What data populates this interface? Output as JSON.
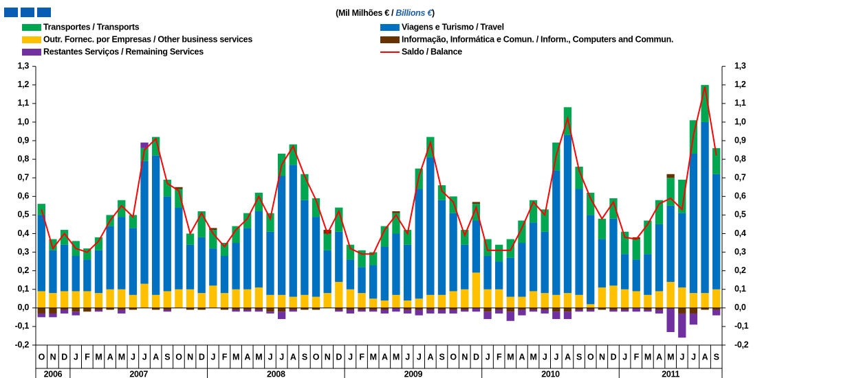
{
  "chart_data": {
    "type": "bar",
    "title": [
      "(Mil Milhões € / ",
      "Billions €",
      ")"
    ],
    "categories": [
      "O",
      "N",
      "D",
      "J",
      "F",
      "M",
      "A",
      "M",
      "J",
      "J",
      "A",
      "S",
      "O",
      "N",
      "D",
      "J",
      "F",
      "M",
      "A",
      "M",
      "J",
      "J",
      "A",
      "S",
      "O",
      "N",
      "D",
      "J",
      "F",
      "M",
      "A",
      "M",
      "J",
      "J",
      "A",
      "S",
      "O",
      "N",
      "D",
      "J",
      "F",
      "M",
      "A",
      "M",
      "J",
      "J",
      "A",
      "S",
      "O",
      "N",
      "D",
      "J",
      "F",
      "M",
      "A",
      "M",
      "J",
      "J",
      "A",
      "S"
    ],
    "years": [
      "2006",
      "2007",
      "2008",
      "2009",
      "2010",
      "2011"
    ],
    "ylim": [
      -0.2,
      1.3
    ],
    "yticks": [
      {
        "value": -0.2,
        "label": "-0,2"
      },
      {
        "value": -0.1,
        "label": "-0,1"
      },
      {
        "value": 0,
        "label": "0,0"
      },
      {
        "value": 0.1,
        "label": "0,1"
      },
      {
        "value": 0.2,
        "label": "0,2"
      },
      {
        "value": 0.3,
        "label": "0,3"
      },
      {
        "value": 0.4,
        "label": "0,4"
      },
      {
        "value": 0.5,
        "label": "0,5"
      },
      {
        "value": 0.6,
        "label": "0,6"
      },
      {
        "value": 0.7,
        "label": "0,7"
      },
      {
        "value": 0.8,
        "label": "0,8"
      },
      {
        "value": 0.9,
        "label": "0,9"
      },
      {
        "value": 1,
        "label": "1,0"
      },
      {
        "value": 1.1,
        "label": "1,1"
      },
      {
        "value": 1.2,
        "label": "1,2"
      },
      {
        "value": 1.3,
        "label": "1,3"
      }
    ],
    "y2lim": [
      -0.2,
      1.3
    ],
    "y2ticks": [
      {
        "value": -0.2,
        "label": "-0,2"
      },
      {
        "value": -0.1,
        "label": "-0,1"
      },
      {
        "value": 0,
        "label": "0,0"
      },
      {
        "value": 0.1,
        "label": "0,1"
      },
      {
        "value": 0.2,
        "label": "0,2"
      },
      {
        "value": 0.3,
        "label": "0,3"
      },
      {
        "value": 0.4,
        "label": "0,4"
      },
      {
        "value": 0.5,
        "label": "0,5"
      },
      {
        "value": 0.6,
        "label": "0,6"
      },
      {
        "value": 0.7,
        "label": "0,7"
      },
      {
        "value": 0.8,
        "label": "0,8"
      },
      {
        "value": 0.9,
        "label": "0,9"
      },
      {
        "value": 1,
        "label": "1,0"
      },
      {
        "value": 1.1,
        "label": "1,1"
      },
      {
        "value": 1.2,
        "label": "1,2"
      },
      {
        "value": 1.3,
        "label": "1,3"
      }
    ],
    "grid": false,
    "series": [
      {
        "name": "Transportes / Transports",
        "color": "#00a650",
        "values": [
          0.06,
          0.06,
          0.08,
          0.08,
          0.06,
          0.07,
          0.06,
          0.09,
          0.07,
          0.07,
          0.1,
          0.09,
          0.1,
          0.06,
          0.14,
          0.1,
          0.07,
          0.09,
          0.08,
          0.1,
          0.1,
          0.12,
          0.11,
          0.14,
          0.1,
          0.09,
          0.13,
          0.08,
          0.09,
          0.07,
          0.11,
          0.11,
          0.08,
          0.11,
          0.11,
          0.08,
          0.09,
          0.08,
          0.09,
          0.09,
          0.09,
          0.1,
          0.12,
          0.12,
          0.12,
          0.15,
          0.15,
          0.12,
          0.12,
          0.11,
          0.11,
          0.12,
          0.11,
          0.18,
          0.13,
          0.15,
          0.18,
          0.18,
          0.2,
          0.14
        ]
      },
      {
        "name": "Viagens e Turismo / Travel",
        "color": "#0070c0",
        "values": [
          0.41,
          0.23,
          0.25,
          0.19,
          0.17,
          0.23,
          0.34,
          0.39,
          0.36,
          0.66,
          0.75,
          0.51,
          0.44,
          0.24,
          0.3,
          0.2,
          0.2,
          0.25,
          0.33,
          0.41,
          0.34,
          0.64,
          0.71,
          0.51,
          0.43,
          0.23,
          0.27,
          0.16,
          0.14,
          0.18,
          0.29,
          0.33,
          0.3,
          0.59,
          0.74,
          0.51,
          0.42,
          0.24,
          0.28,
          0.18,
          0.15,
          0.21,
          0.29,
          0.37,
          0.33,
          0.67,
          0.85,
          0.57,
          0.48,
          0.26,
          0.36,
          0.19,
          0.17,
          0.22,
          0.36,
          0.41,
          0.4,
          0.75,
          0.92,
          0.62
        ]
      },
      {
        "name": "Outr. Fornec. por Empresas  / Other business services",
        "color": "#ffc000",
        "values": [
          0.09,
          0.08,
          0.09,
          0.09,
          0.09,
          0.08,
          0.1,
          0.1,
          0.07,
          0.13,
          0.07,
          0.09,
          0.1,
          0.1,
          0.08,
          0.12,
          0.08,
          0.1,
          0.1,
          0.11,
          0.07,
          0.07,
          0.06,
          0.07,
          0.06,
          0.08,
          0.14,
          0.1,
          0.08,
          0.05,
          0.04,
          0.07,
          0.04,
          0.05,
          0.07,
          0.07,
          0.09,
          0.1,
          0.19,
          0.1,
          0.1,
          0.06,
          0.06,
          0.09,
          0.08,
          0.07,
          0.08,
          0.07,
          0.02,
          0.11,
          0.12,
          0.1,
          0.09,
          0.07,
          0.09,
          0.14,
          0.11,
          0.08,
          0.08,
          0.1
        ]
      },
      {
        "name": "Informação, Informática e Comun. / Inform., Computers and Commun.",
        "color": "#663300",
        "values": [
          -0.03,
          -0.03,
          -0.01,
          -0.02,
          -0.02,
          -0.01,
          -0.01,
          -0.01,
          -0.01,
          0,
          -0.01,
          -0.01,
          0.01,
          -0.01,
          -0.01,
          0.01,
          -0.01,
          -0.01,
          -0.01,
          -0.01,
          -0.02,
          -0.02,
          -0.01,
          -0.01,
          -0.01,
          0.02,
          -0.01,
          -0.01,
          -0.01,
          -0.01,
          -0.01,
          0.01,
          -0.01,
          -0.01,
          -0.01,
          -0.01,
          -0.01,
          -0.01,
          0.01,
          -0.02,
          -0.01,
          -0.02,
          -0.01,
          -0.01,
          -0.01,
          -0.02,
          -0.02,
          -0.01,
          -0.01,
          -0.01,
          -0.01,
          -0.01,
          0.01,
          -0.01,
          -0.01,
          0.02,
          -0.03,
          -0.03,
          -0.01,
          -0.01
        ]
      },
      {
        "name": "Restantes Serviços / Remaining Services",
        "color": "#7030a0",
        "values": [
          -0.02,
          -0.02,
          -0.02,
          -0.02,
          0,
          -0.01,
          0,
          -0.02,
          0,
          0.03,
          0,
          -0.01,
          0,
          0,
          0,
          0,
          0,
          -0.01,
          -0.01,
          -0.01,
          -0.01,
          -0.04,
          -0.01,
          0,
          0,
          0,
          -0.01,
          -0.02,
          -0.01,
          -0.01,
          -0.02,
          -0.02,
          -0.02,
          -0.03,
          -0.02,
          -0.02,
          -0.02,
          -0.01,
          -0.02,
          -0.04,
          -0.02,
          -0.05,
          -0.03,
          -0.01,
          -0.02,
          -0.04,
          -0.04,
          -0.01,
          -0.01,
          0,
          -0.01,
          -0.01,
          -0.02,
          -0.01,
          -0.02,
          -0.13,
          -0.13,
          -0.06,
          0,
          -0.03
        ]
      },
      {
        "name": "Saldo / Balance",
        "color": "#ff0000",
        "type": "line",
        "values": [
          0.53,
          0.32,
          0.4,
          0.32,
          0.3,
          0.36,
          0.47,
          0.55,
          0.49,
          0.85,
          0.91,
          0.67,
          0.63,
          0.4,
          0.51,
          0.4,
          0.33,
          0.42,
          0.48,
          0.6,
          0.48,
          0.77,
          0.87,
          0.71,
          0.58,
          0.4,
          0.52,
          0.32,
          0.29,
          0.29,
          0.42,
          0.5,
          0.4,
          0.71,
          0.89,
          0.63,
          0.57,
          0.39,
          0.54,
          0.31,
          0.31,
          0.31,
          0.43,
          0.57,
          0.5,
          0.82,
          1.02,
          0.74,
          0.59,
          0.48,
          0.57,
          0.38,
          0.37,
          0.45,
          0.56,
          0.59,
          0.53,
          0.93,
          1.19,
          0.82
        ]
      }
    ]
  }
}
